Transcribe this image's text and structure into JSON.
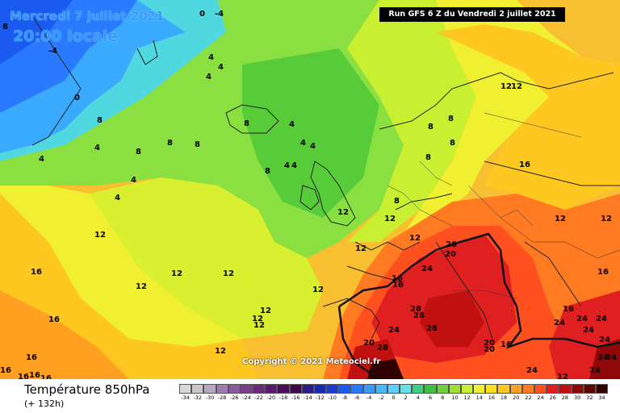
{
  "header": {
    "date_text": "Mercredi 7 juillet 2021",
    "time_text": "20:00 locale",
    "run_text": "Run GFS 6 Z du Vendredi 2 juillet 2021"
  },
  "copyright": "Copyright © 2021 Meteociel.fr",
  "footer": {
    "title": "Température 850hPa",
    "subtitle": "(+ 132h)"
  },
  "map_labels": {
    "neg4_a": "-4",
    "zero_a": "0",
    "eight_a": "8",
    "neg4_b": "-4",
    "zero_b": "0",
    "four_a": "4",
    "four_b": "4",
    "eight_b": "8",
    "four_c": "4",
    "eight_c": "8",
    "four_d": "4",
    "four_e": "4",
    "four_f": "4",
    "four_g": "4",
    "eight_d": "8",
    "eight_e": "8",
    "eight_f": "8",
    "four_h": "4",
    "eight_g": "8",
    "four_i": "4",
    "four_j": "4",
    "eight_h": "8",
    "four_k": "4",
    "four_l": "4",
    "eight_i": "8",
    "eight_j": "8",
    "eight_k": "8",
    "eight_l": "8",
    "twelve_a": "12",
    "twelve_b": "12",
    "sixteen_a": "16",
    "twelve_c": "12",
    "twelve_d": "12",
    "sixteen_b": "16",
    "twelve_e": "12",
    "twelve_f": "12",
    "twelve_g": "12",
    "twelve_h": "12",
    "twelve_i": "12",
    "twelve_j": "12",
    "twelve_k": "12",
    "twelve_l": "12",
    "sixteen_c": "16",
    "sixteen_d": "16",
    "sixteen_e": "16",
    "sixteen_f": "16",
    "sixteen_g": "16",
    "twelve_m": "12",
    "twelve_n": "12",
    "twelve_o": "12",
    "twelve_p": "12",
    "sixteen_h": "16",
    "sixteen_i": "16",
    "twenty_a": "20",
    "twenty_b": "20",
    "twentyfour_a": "24",
    "twentyeight_a": "28",
    "twentyeight_b": "28",
    "twentyfour_b": "24",
    "twentyeight_c": "28",
    "twenty_c": "20",
    "twentyeight_d": "28",
    "twenty_d": "20",
    "twenty_e": "20",
    "sixteen_j": "16",
    "twentyfour_c": "24",
    "twentyfour_d": "24",
    "twentyfour_e": "24",
    "twentyfour_f": "24",
    "twentyfour_g": "24",
    "twentyfour_h": "24",
    "twentyfour_i": "24",
    "twentyfour_j": "24",
    "twentyfour_k": "24",
    "twelve_q": "12",
    "twelve_r": "12",
    "sixteen_k": "16",
    "sixteen_l": "16",
    "sixteen_m": "16"
  },
  "scale": {
    "ticks": [
      "-34",
      "-32",
      "-30",
      "-28",
      "-26",
      "-24",
      "-22",
      "-20",
      "-18",
      "-16",
      "-14",
      "-12",
      "-10",
      "-8",
      "-6",
      "-4",
      "-2",
      "0",
      "2",
      "4",
      "6",
      "8",
      "10",
      "12",
      "14",
      "16",
      "18",
      "20",
      "22",
      "24",
      "26",
      "28",
      "30",
      "32",
      "34"
    ],
    "colors": [
      "#d9d9d9",
      "#c8c8c8",
      "#b7a7c7",
      "#a07ab0",
      "#8a5a9e",
      "#7a3f8c",
      "#6a2a7a",
      "#5b1a6a",
      "#4a0f5a",
      "#3a0a4a",
      "#2a1a8a",
      "#1a2ab0",
      "#1a3ad0",
      "#1a5af0",
      "#2a7aff",
      "#3a9aff",
      "#4ab8ff",
      "#5ad0ff",
      "#6ae0e0",
      "#3ad080",
      "#40c040",
      "#70d040",
      "#a0e030",
      "#c8f030",
      "#f0f030",
      "#ffe020",
      "#ffc820",
      "#ffa020",
      "#ff7a20",
      "#ff5020",
      "#e02020",
      "#c01010",
      "#900808",
      "#600404",
      "#300000"
    ]
  }
}
